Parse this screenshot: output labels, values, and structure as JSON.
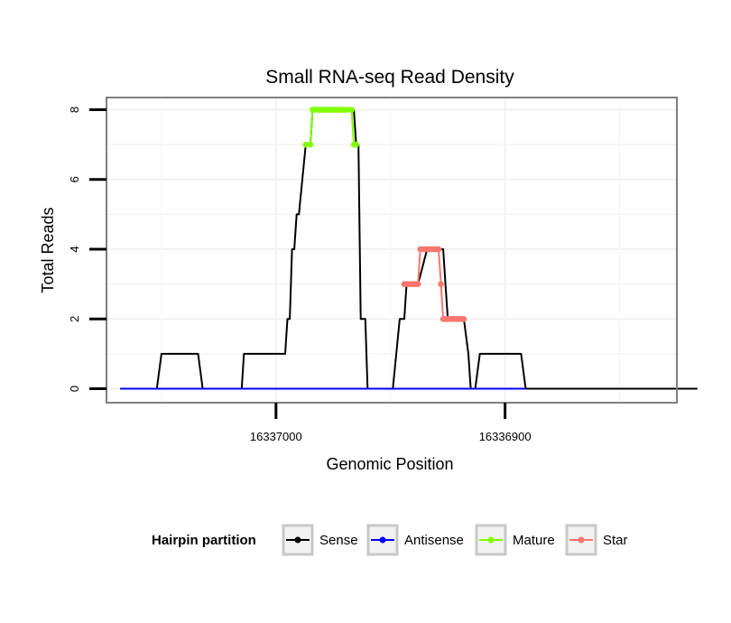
{
  "chart_data": {
    "type": "line",
    "title": "Small RNA-seq Read Density",
    "xlabel": "Genomic Position",
    "ylabel": "Total Reads",
    "x_reversed": true,
    "xlim": [
      16337074,
      16336825
    ],
    "ylim": [
      -0.4,
      8.35
    ],
    "x_ticks": [
      {
        "value": 16337000,
        "label": "16337000"
      },
      {
        "value": 16336900,
        "label": "16336900"
      }
    ],
    "y_ticks": [
      {
        "value": 0,
        "label": "0"
      },
      {
        "value": 2,
        "label": "2"
      },
      {
        "value": 4,
        "label": "4"
      },
      {
        "value": 6,
        "label": "6"
      },
      {
        "value": 8,
        "label": "8"
      }
    ],
    "legend": {
      "title": "Hairpin partition",
      "position": "bottom",
      "entries": [
        {
          "name": "Sense",
          "color": "#000000"
        },
        {
          "name": "Antisense",
          "color": "#0000ff"
        },
        {
          "name": "Mature",
          "color": "#7fff00"
        },
        {
          "name": "Star",
          "color": "#f8766d"
        }
      ]
    },
    "series": [
      {
        "name": "Sense",
        "color": "#000000",
        "x": [
          16337068,
          16337052,
          16337050,
          16337034,
          16337032,
          16337015,
          16337014,
          16336997,
          16336996,
          16336995,
          16336994,
          16336993,
          16336992,
          16336991,
          16336990,
          16336987,
          16336985,
          16336984,
          16336982,
          16336981,
          16336980,
          16336972,
          16336966,
          16336965,
          16336964,
          16336963,
          16336961,
          16336960,
          16336949,
          16336946,
          16336944,
          16336943,
          16336940,
          16336938,
          16336934,
          16336930,
          16336927,
          16336926,
          16336925,
          16336918,
          16336916,
          16336915,
          16336913,
          16336911,
          16336909,
          16336908,
          16336893,
          16336891,
          16336816
        ],
        "y": [
          0,
          0,
          1,
          1,
          0,
          0,
          1,
          1,
          1,
          2,
          2,
          4,
          4,
          5,
          5,
          7,
          7,
          8,
          8,
          8,
          8,
          8,
          8,
          7,
          7,
          2,
          2,
          0,
          0,
          2,
          2,
          3,
          3,
          3,
          4,
          4,
          4,
          3,
          2,
          2,
          1,
          0,
          0,
          1,
          1,
          1,
          1,
          0,
          0
        ]
      },
      {
        "name": "Antisense",
        "color": "#0000ff",
        "x": [
          16337068,
          16336891
        ],
        "y": [
          0,
          0
        ]
      },
      {
        "name": "Mature",
        "color": "#7fff00",
        "x": [
          16336987,
          16336985,
          16336984,
          16336983,
          16336982,
          16336981,
          16336980,
          16336979,
          16336978,
          16336977,
          16336976,
          16336975,
          16336974,
          16336973,
          16336972,
          16336971,
          16336970,
          16336969,
          16336967,
          16336966,
          16336965
        ],
        "y": [
          7,
          7,
          8,
          8,
          8,
          8,
          8,
          8,
          8,
          8,
          8,
          8,
          8,
          8,
          8,
          8,
          8,
          8,
          8,
          7,
          7
        ]
      },
      {
        "name": "Star",
        "color": "#f8766d",
        "x": [
          16336944,
          16336943,
          16336942,
          16336941,
          16336940,
          16336939,
          16336938,
          16336937,
          16336936,
          16336935,
          16336934,
          16336933,
          16336932,
          16336931,
          16336930,
          16336929,
          16336928,
          16336927,
          16336926,
          16336925,
          16336924,
          16336923,
          16336922,
          16336921,
          16336920,
          16336919,
          16336918
        ],
        "y": [
          3,
          3,
          3,
          3,
          3,
          3,
          3,
          4,
          4,
          4,
          4,
          4,
          4,
          4,
          4,
          4,
          3,
          2,
          2,
          2,
          2,
          2,
          2,
          2,
          2,
          2,
          2
        ]
      }
    ]
  }
}
